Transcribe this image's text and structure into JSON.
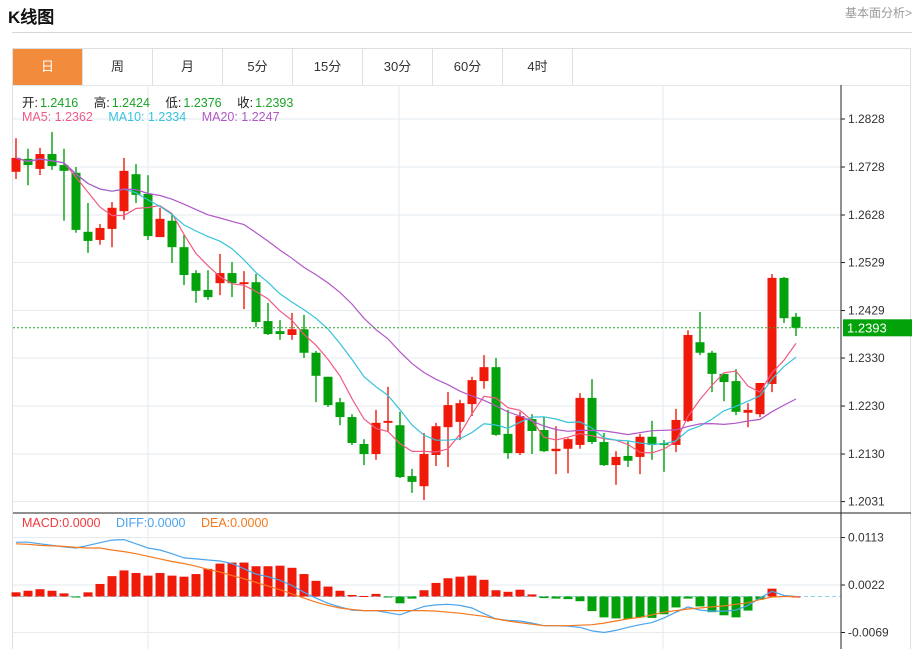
{
  "header": {
    "title": "K线图",
    "link": "基本面分析>"
  },
  "tabs": [
    {
      "label": "日",
      "active": true
    },
    {
      "label": "周"
    },
    {
      "label": "月"
    },
    {
      "label": "5分"
    },
    {
      "label": "15分"
    },
    {
      "label": "30分"
    },
    {
      "label": "60分"
    },
    {
      "label": "4时"
    }
  ],
  "ohlc_info": {
    "open_label": "开:",
    "open": "1.2416",
    "high_label": "高:",
    "high": "1.2424",
    "low_label": "低:",
    "low": "1.2376",
    "close_label": "收:",
    "close": "1.2393"
  },
  "ma_info": {
    "ma5": "MA5: 1.2362",
    "ma10": "MA10: 1.2334",
    "ma20": "MA20: 1.2247"
  },
  "macd_info": {
    "macd": "MACD:0.0000",
    "diff": "DIFF:0.0000",
    "dea": "DEA:0.0000"
  },
  "colors": {
    "up": "#f01a0a",
    "down": "#03a10b",
    "ma5": "#ef5b86",
    "ma10": "#36c3db",
    "ma20": "#b257c7",
    "diff": "#4aa4ee",
    "dea": "#f5791e",
    "tab_active": "#f28c3c"
  },
  "chart_data": [
    {
      "type": "candlestick",
      "title": "K线图",
      "price_ticks": [
        "1.2828",
        "1.2728",
        "1.2628",
        "1.2529",
        "1.2429",
        "1.2330",
        "1.2230",
        "1.2130",
        "1.2031"
      ],
      "current_price": "1.2393",
      "ma_periods": [
        5,
        10,
        20
      ],
      "candles": [
        [
          1.2718,
          1.2788,
          1.2703,
          1.2747
        ],
        [
          1.2745,
          1.2766,
          1.269,
          1.2732
        ],
        [
          1.2724,
          1.2768,
          1.2711,
          1.2755
        ],
        [
          1.2755,
          1.2801,
          1.2722,
          1.273
        ],
        [
          1.2732,
          1.2766,
          1.2616,
          1.272
        ],
        [
          1.2716,
          1.2728,
          1.2591,
          1.2597
        ],
        [
          1.2593,
          1.2653,
          1.2549,
          1.2574
        ],
        [
          1.2576,
          1.2609,
          1.2566,
          1.2601
        ],
        [
          1.2599,
          1.2655,
          1.2561,
          1.2643
        ],
        [
          1.2636,
          1.2747,
          1.2618,
          1.272
        ],
        [
          1.2713,
          1.2734,
          1.2653,
          1.267
        ],
        [
          1.2672,
          1.2711,
          1.2576,
          1.2584
        ],
        [
          1.2582,
          1.2643,
          1.2582,
          1.262
        ],
        [
          1.2616,
          1.263,
          1.2528,
          1.2561
        ],
        [
          1.2561,
          1.2586,
          1.2482,
          1.2503
        ],
        [
          1.2507,
          1.2513,
          1.2445,
          1.247
        ],
        [
          1.2472,
          1.2513,
          1.2451,
          1.2457
        ],
        [
          1.2486,
          1.2547,
          1.2461,
          1.2507
        ],
        [
          1.2507,
          1.253,
          1.2457,
          1.2486
        ],
        [
          1.2484,
          1.2511,
          1.2432,
          1.2488
        ],
        [
          1.2488,
          1.2505,
          1.2395,
          1.2405
        ],
        [
          1.2407,
          1.2445,
          1.2378,
          1.238
        ],
        [
          1.2386,
          1.2409,
          1.2368,
          1.238
        ],
        [
          1.2378,
          1.2424,
          1.2368,
          1.239
        ],
        [
          1.239,
          1.242,
          1.233,
          1.2341
        ],
        [
          1.2341,
          1.2345,
          1.2238,
          1.2293
        ],
        [
          1.2291,
          1.2291,
          1.2228,
          1.2232
        ],
        [
          1.2238,
          1.2247,
          1.219,
          1.2207
        ],
        [
          1.2207,
          1.2213,
          1.2149,
          1.2153
        ],
        [
          1.2151,
          1.2161,
          1.2107,
          1.213
        ],
        [
          1.213,
          1.2222,
          1.2118,
          1.2195
        ],
        [
          1.2195,
          1.227,
          1.2178,
          1.2199
        ],
        [
          1.219,
          1.2218,
          1.208,
          1.2082
        ],
        [
          1.2084,
          1.2099,
          1.2049,
          1.2072
        ],
        [
          1.2063,
          1.2174,
          1.2034,
          1.213
        ],
        [
          1.2128,
          1.2195,
          1.2105,
          1.2188
        ],
        [
          1.2186,
          1.2259,
          1.2103,
          1.2232
        ],
        [
          1.2197,
          1.2243,
          1.2159,
          1.2236
        ],
        [
          1.2234,
          1.2291,
          1.2209,
          1.2284
        ],
        [
          1.2282,
          1.2336,
          1.2266,
          1.2311
        ],
        [
          1.2311,
          1.233,
          1.2168,
          1.217
        ],
        [
          1.2172,
          1.2222,
          1.212,
          1.2132
        ],
        [
          1.2132,
          1.2218,
          1.2128,
          1.2209
        ],
        [
          1.2203,
          1.2213,
          1.213,
          1.2178
        ],
        [
          1.218,
          1.2207,
          1.2134,
          1.2136
        ],
        [
          1.2136,
          1.2188,
          1.2088,
          1.2141
        ],
        [
          1.2141,
          1.2163,
          1.209,
          1.2161
        ],
        [
          1.2149,
          1.2257,
          1.2141,
          1.2247
        ],
        [
          1.2247,
          1.2286,
          1.2151,
          1.2155
        ],
        [
          1.2155,
          1.2174,
          1.2105,
          1.2107
        ],
        [
          1.2107,
          1.2136,
          1.2066,
          1.2124
        ],
        [
          1.2126,
          1.2157,
          1.2103,
          1.2116
        ],
        [
          1.2124,
          1.2172,
          1.2088,
          1.2166
        ],
        [
          1.2166,
          1.2199,
          1.2118,
          1.2149
        ],
        [
          1.2153,
          1.2159,
          1.2093,
          1.2149
        ],
        [
          1.2149,
          1.2224,
          1.2134,
          1.2201
        ],
        [
          1.2199,
          1.2388,
          1.2197,
          1.2378
        ],
        [
          1.2363,
          1.2426,
          1.2336,
          1.2341
        ],
        [
          1.2341,
          1.2345,
          1.2259,
          1.2297
        ],
        [
          1.2297,
          1.2297,
          1.224,
          1.228
        ],
        [
          1.2282,
          1.2307,
          1.2211,
          1.2218
        ],
        [
          1.2216,
          1.2236,
          1.2186,
          1.2222
        ],
        [
          1.2213,
          1.2278,
          1.2207,
          1.2278
        ],
        [
          1.2276,
          1.2505,
          1.2259,
          1.2497
        ],
        [
          1.2497,
          1.2499,
          1.2403,
          1.2413
        ],
        [
          1.2416,
          1.2424,
          1.2376,
          1.2393
        ]
      ],
      "candle_format": [
        "open",
        "high",
        "low",
        "close"
      ]
    },
    {
      "type": "bar+line",
      "title": "MACD",
      "ticks": [
        "0.0113",
        "0.0022",
        "-0.0069"
      ],
      "macd": [
        0.0008,
        0.0011,
        0.0014,
        0.0011,
        0.0006,
        -0.0001,
        0.0008,
        0.0024,
        0.0039,
        0.005,
        0.0045,
        0.004,
        0.0045,
        0.004,
        0.0038,
        0.0043,
        0.0053,
        0.0063,
        0.0065,
        0.0065,
        0.0058,
        0.0058,
        0.0059,
        0.0055,
        0.0043,
        0.003,
        0.0019,
        0.0011,
        0.0003,
        0.0001,
        0.0005,
        -0.0001,
        -0.0013,
        -0.0004,
        0.0012,
        0.0026,
        0.0035,
        0.0038,
        0.004,
        0.0032,
        0.0012,
        0.0009,
        0.0013,
        0.0004,
        -0.0003,
        -0.0004,
        -0.0005,
        -0.0009,
        -0.0028,
        -0.004,
        -0.0042,
        -0.0043,
        -0.004,
        -0.0041,
        -0.0034,
        -0.0021,
        -0.0004,
        -0.0019,
        -0.003,
        -0.0036,
        -0.004,
        -0.0027,
        -0.0006,
        0.0015,
        0.0001,
        0.0
      ],
      "diff": [
        0.0104,
        0.0104,
        0.0101,
        0.0098,
        0.0095,
        0.0093,
        0.0098,
        0.0103,
        0.0108,
        0.0109,
        0.0101,
        0.0093,
        0.0089,
        0.0082,
        0.0074,
        0.0072,
        0.007,
        0.0068,
        0.0063,
        0.0053,
        0.0043,
        0.0038,
        0.0031,
        0.0021,
        0.0008,
        -0.0003,
        -0.0013,
        -0.002,
        -0.0026,
        -0.0027,
        -0.0027,
        -0.0031,
        -0.0035,
        -0.0027,
        -0.0019,
        -0.0016,
        -0.0015,
        -0.0017,
        -0.0022,
        -0.0033,
        -0.0043,
        -0.0046,
        -0.0047,
        -0.0051,
        -0.0056,
        -0.0056,
        -0.0057,
        -0.0059,
        -0.0066,
        -0.0069,
        -0.0065,
        -0.0059,
        -0.0054,
        -0.005,
        -0.0041,
        -0.003,
        -0.002,
        -0.0026,
        -0.0028,
        -0.0028,
        -0.0026,
        -0.0017,
        -0.0003,
        0.001,
        0.0002,
        0.0
      ],
      "dea": [
        0.0101,
        0.01,
        0.0098,
        0.0097,
        0.0096,
        0.0094,
        0.0093,
        0.0093,
        0.0089,
        0.0086,
        0.0082,
        0.0077,
        0.0072,
        0.0067,
        0.0063,
        0.0058,
        0.0052,
        0.0047,
        0.004,
        0.0034,
        0.0027,
        0.002,
        0.0013,
        0.0005,
        -0.0003,
        -0.0011,
        -0.0017,
        -0.0022,
        -0.0025,
        -0.0027,
        -0.0027,
        -0.0027,
        -0.0027,
        -0.0027,
        -0.0027,
        -0.0028,
        -0.003,
        -0.0032,
        -0.0035,
        -0.0038,
        -0.0043,
        -0.0047,
        -0.005,
        -0.0053,
        -0.0056,
        -0.0056,
        -0.0056,
        -0.0055,
        -0.0054,
        -0.0051,
        -0.0047,
        -0.0043,
        -0.004,
        -0.0035,
        -0.003,
        -0.0027,
        -0.0024,
        -0.0022,
        -0.002,
        -0.0018,
        -0.0015,
        -0.0012,
        -0.0006,
        -0.0001,
        0.0,
        0.0
      ]
    }
  ]
}
